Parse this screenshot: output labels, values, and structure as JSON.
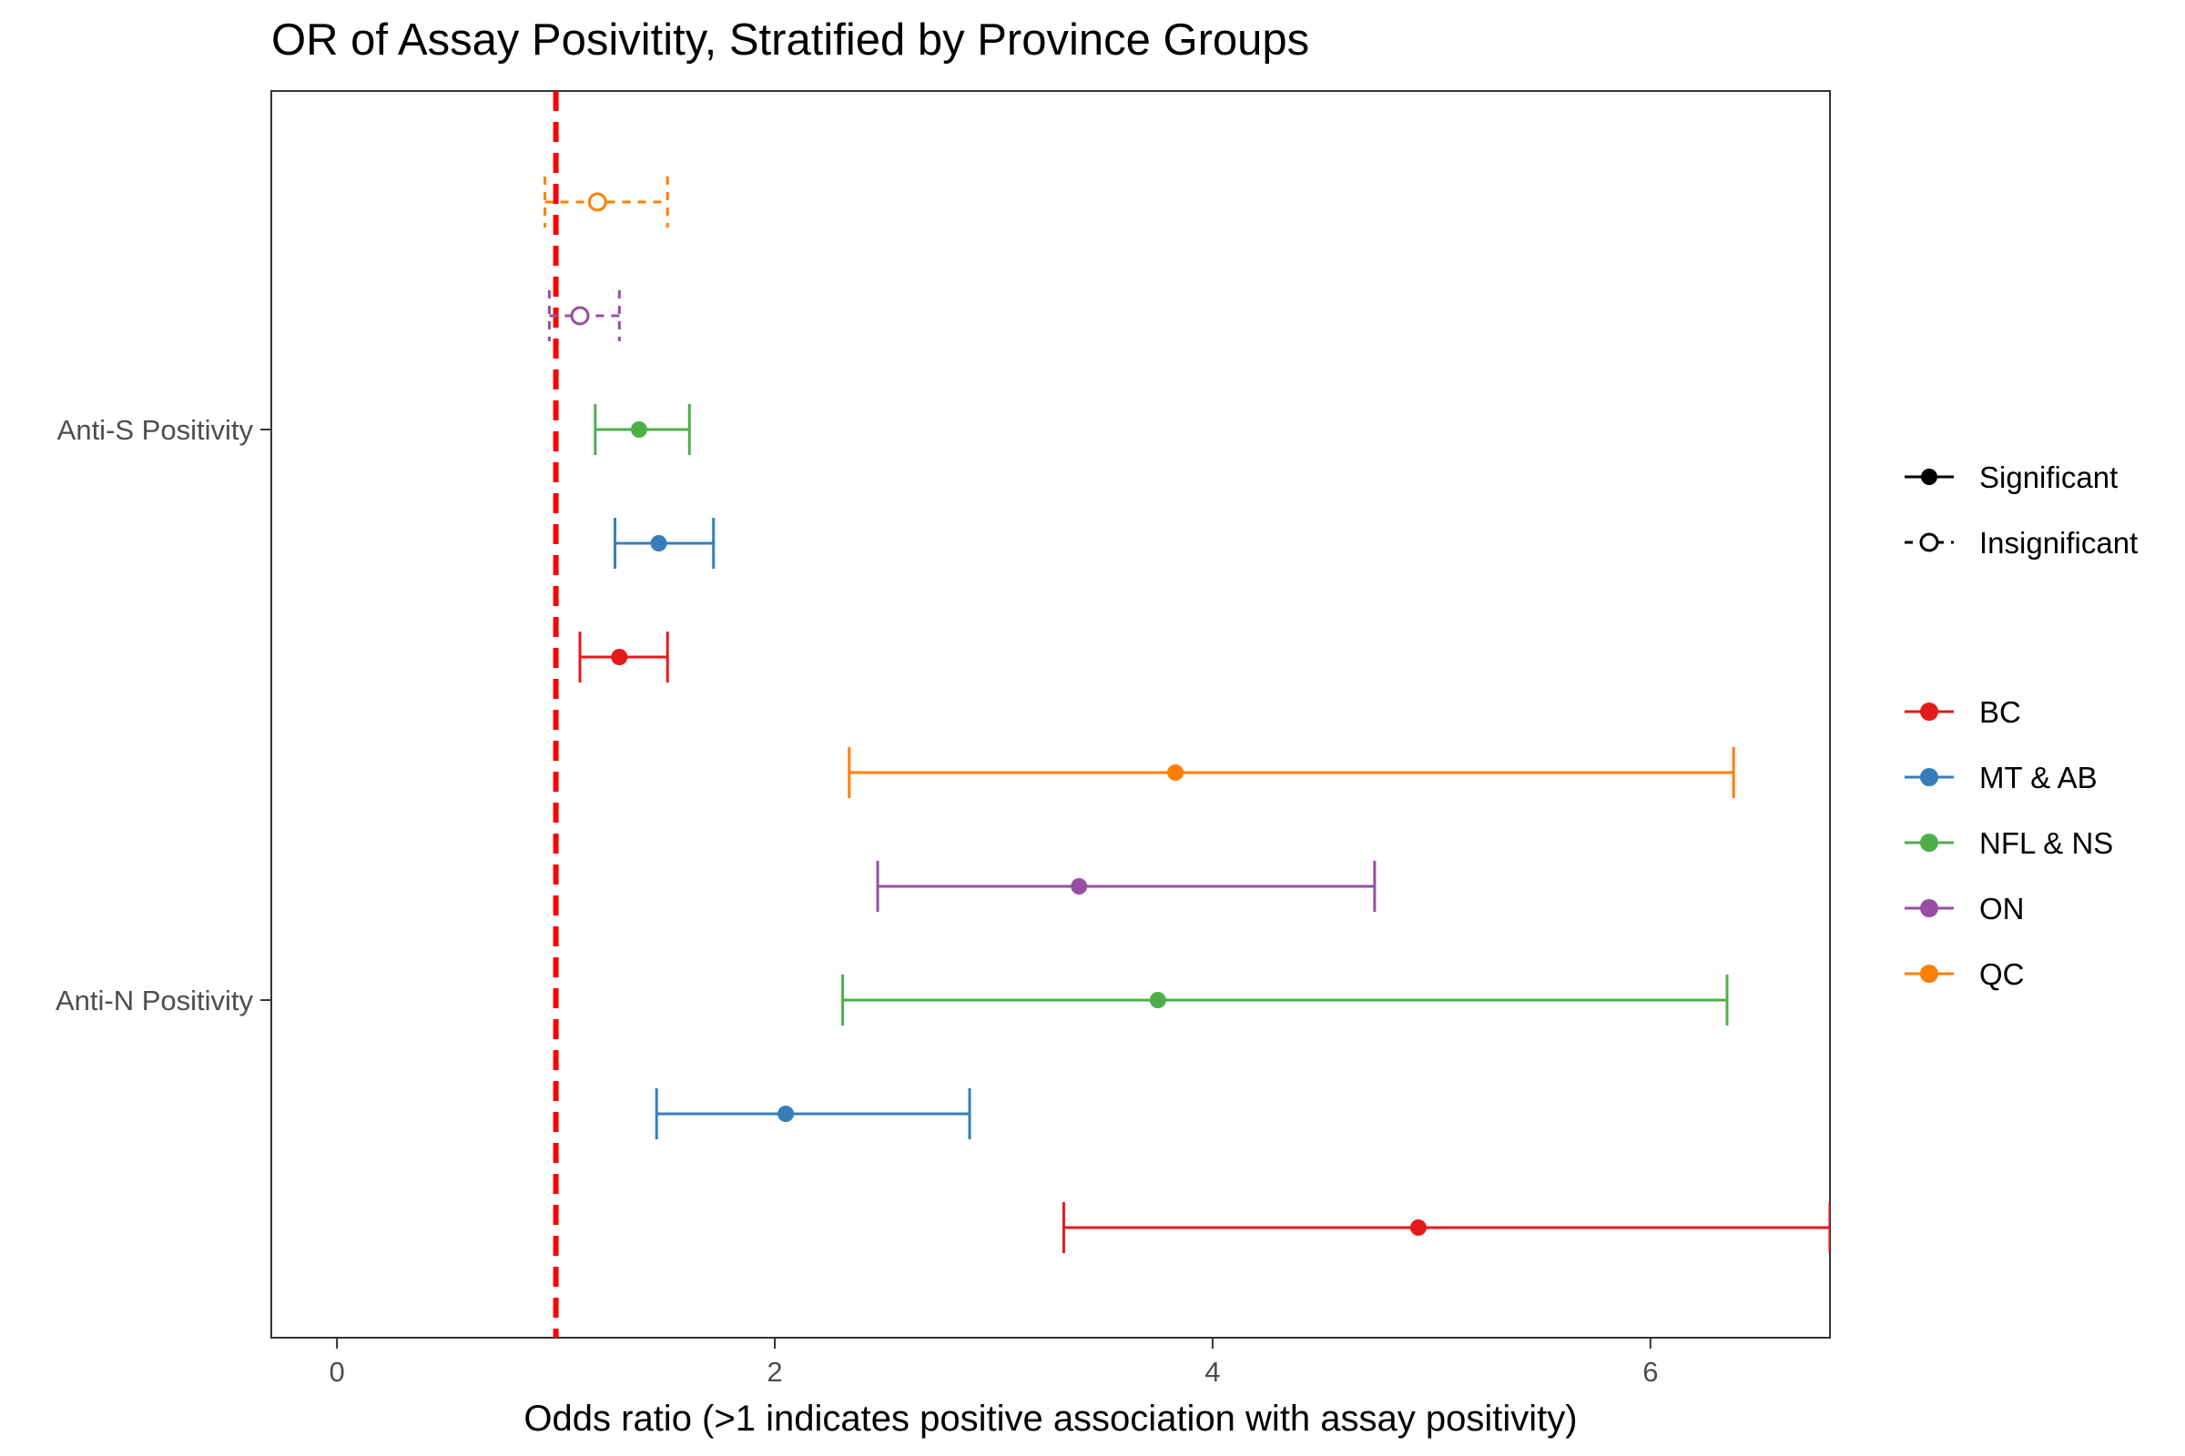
{
  "chart_data": {
    "type": "forest",
    "title": "OR of Assay Posivitity, Stratified by Province Groups",
    "xlabel": "Odds ratio (>1 indicates positive association with assay positivity)",
    "ylabel": "",
    "xlim": [
      -0.3,
      6.82
    ],
    "x_ticks": [
      0,
      2,
      4,
      6
    ],
    "x_tick_labels": [
      "0",
      "2",
      "4",
      "6"
    ],
    "reference_line": 1,
    "reference_color": "#ff0000",
    "grid": false,
    "categories": [
      "Anti-S Positivity",
      "Anti-N Positivity"
    ],
    "series": [
      {
        "name": "BC",
        "color": "#e41a1c",
        "estimates": [
          {
            "category": "Anti-S Positivity",
            "or": 1.29,
            "lower": 1.11,
            "upper": 1.51,
            "significant": true
          },
          {
            "category": "Anti-N Positivity",
            "or": 4.94,
            "lower": 3.32,
            "upper": 6.82,
            "significant": true
          }
        ]
      },
      {
        "name": "MT & AB",
        "color": "#377eb8",
        "estimates": [
          {
            "category": "Anti-S Positivity",
            "or": 1.47,
            "lower": 1.27,
            "upper": 1.72,
            "significant": true
          },
          {
            "category": "Anti-N Positivity",
            "or": 2.05,
            "lower": 1.46,
            "upper": 2.89,
            "significant": true
          }
        ]
      },
      {
        "name": "NFL & NS",
        "color": "#4daf4a",
        "estimates": [
          {
            "category": "Anti-S Positivity",
            "or": 1.38,
            "lower": 1.18,
            "upper": 1.61,
            "significant": true
          },
          {
            "category": "Anti-N Positivity",
            "or": 3.75,
            "lower": 2.31,
            "upper": 6.35,
            "significant": true
          }
        ]
      },
      {
        "name": "ON",
        "color": "#984ea3",
        "estimates": [
          {
            "category": "Anti-S Positivity",
            "or": 1.11,
            "lower": 0.97,
            "upper": 1.29,
            "significant": false
          },
          {
            "category": "Anti-N Positivity",
            "or": 3.39,
            "lower": 2.47,
            "upper": 4.74,
            "significant": true
          }
        ]
      },
      {
        "name": "QC",
        "color": "#ff7f00",
        "estimates": [
          {
            "category": "Anti-S Positivity",
            "or": 1.19,
            "lower": 0.95,
            "upper": 1.51,
            "significant": false
          },
          {
            "category": "Anti-N Positivity",
            "or": 3.83,
            "lower": 2.34,
            "upper": 6.38,
            "significant": true
          }
        ]
      }
    ],
    "legend": {
      "placement": "right",
      "significance": [
        {
          "label": "Significant",
          "style": "solid"
        },
        {
          "label": "Insignificant",
          "style": "dashed"
        }
      ],
      "groups": [
        "BC",
        "MT & AB",
        "NFL & NS",
        "ON",
        "QC"
      ]
    }
  }
}
